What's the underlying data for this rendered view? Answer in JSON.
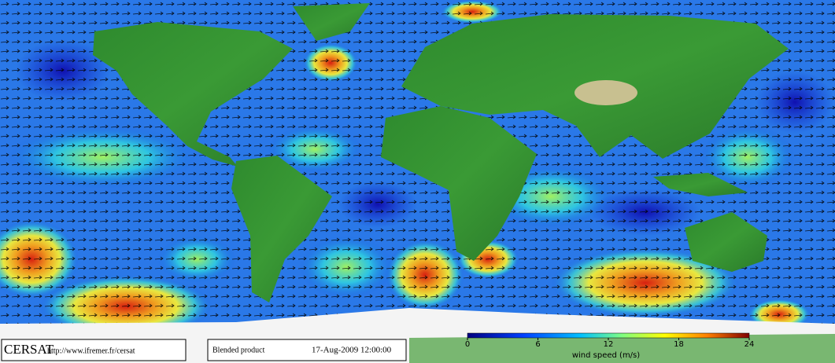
{
  "logo": "CERSAT",
  "url": "http://www.ifremer.fr/cersat",
  "product": "Blended product",
  "datetime": "17-Aug-2009 12:00:00",
  "colorbar": {
    "label": "wind speed (m/s)",
    "range": [
      0,
      24
    ],
    "ticks": [
      0,
      6,
      12,
      18,
      24
    ]
  }
}
